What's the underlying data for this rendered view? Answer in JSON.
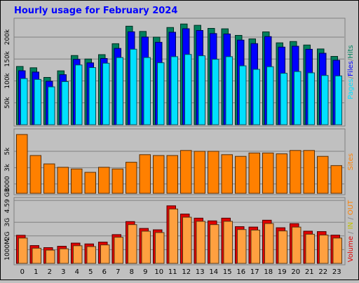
{
  "chart_data": [
    {
      "type": "bar",
      "title": "Hourly usage for February 2024",
      "categories": [
        "0",
        "1",
        "2",
        "3",
        "4",
        "5",
        "6",
        "7",
        "8",
        "9",
        "10",
        "11",
        "12",
        "13",
        "14",
        "15",
        "16",
        "17",
        "18",
        "19",
        "20",
        "21",
        "22",
        "23"
      ],
      "yticks": [
        "50k",
        "100k",
        "150k",
        "200k"
      ],
      "ylim": [
        0,
        240000
      ],
      "series": [
        {
          "name": "Hits",
          "color": "#00805c",
          "values": [
            133000,
            130000,
            108000,
            123000,
            158000,
            150000,
            160000,
            185000,
            225000,
            213000,
            200000,
            222000,
            230000,
            227000,
            220000,
            219000,
            204000,
            196000,
            212000,
            187000,
            190000,
            182000,
            173000,
            156000
          ]
        },
        {
          "name": "Files",
          "color": "#0000ff",
          "values": [
            128000,
            125000,
            104000,
            119000,
            154000,
            146000,
            156000,
            179000,
            217000,
            205000,
            193000,
            216000,
            224000,
            220000,
            213000,
            212000,
            198000,
            190000,
            206000,
            182000,
            184000,
            177000,
            168000,
            152000
          ]
        },
        {
          "name": "Pages",
          "color": "#00e0ff",
          "values": [
            115000,
            113000,
            96000,
            108000,
            146000,
            140000,
            150000,
            163000,
            182000,
            163000,
            151000,
            165000,
            170000,
            167000,
            159000,
            165000,
            144000,
            136000,
            142000,
            127000,
            131000,
            128000,
            122000,
            121000
          ]
        }
      ],
      "ylabel": [
        {
          "text": "Pages",
          "color": "#00e0ff"
        },
        {
          "text": "/",
          "color": "#808080"
        },
        {
          "text": "Files",
          "color": "#0000ff"
        },
        {
          "text": "/",
          "color": "#808080"
        },
        {
          "text": "Hits",
          "color": "#00805c"
        }
      ]
    },
    {
      "type": "bar",
      "categories": [
        "0",
        "1",
        "2",
        "3",
        "4",
        "5",
        "6",
        "7",
        "8",
        "9",
        "10",
        "11",
        "12",
        "13",
        "14",
        "15",
        "16",
        "17",
        "18",
        "19",
        "20",
        "21",
        "22",
        "23"
      ],
      "yticks": [
        "1000",
        "3k",
        "5k"
      ],
      "ylim": [
        0,
        7500
      ],
      "series": [
        {
          "name": "Sites",
          "color": "#ff8000",
          "values": [
            7000,
            4500,
            3500,
            3100,
            2900,
            2500,
            3100,
            2900,
            3700,
            4600,
            4500,
            4500,
            5100,
            5000,
            5000,
            4600,
            4400,
            4800,
            4800,
            4700,
            5100,
            5100,
            4400,
            3300
          ]
        }
      ],
      "ylabel": [
        {
          "text": "Sites",
          "color": "#ff8000"
        }
      ]
    },
    {
      "type": "bar",
      "categories": [
        "0",
        "1",
        "2",
        "3",
        "4",
        "5",
        "6",
        "7",
        "8",
        "9",
        "10",
        "11",
        "12",
        "13",
        "14",
        "15",
        "16",
        "17",
        "18",
        "19",
        "20",
        "21",
        "22",
        "23"
      ],
      "yticks": [
        "1000M",
        "2G",
        "3G",
        "4.59 GB"
      ],
      "ylim": [
        0,
        4.7
      ],
      "series": [
        {
          "name": "Volume",
          "color": "#e00000",
          "values": [
            2.05,
            1.3,
            1.15,
            1.25,
            1.48,
            1.42,
            1.55,
            2.1,
            3.05,
            2.55,
            2.45,
            4.2,
            3.6,
            3.3,
            3.1,
            3.3,
            2.68,
            2.65,
            3.15,
            2.6,
            2.9,
            2.35,
            2.32,
            2.06
          ]
        },
        {
          "name": "IN",
          "color": "#ffff00",
          "values": [
            0,
            0,
            0,
            0,
            0,
            0,
            0,
            0,
            0,
            0,
            0,
            0,
            0,
            0,
            0,
            0,
            0,
            0,
            0,
            0,
            0,
            0,
            0,
            0
          ]
        },
        {
          "name": "OUT",
          "color": "#ffa040",
          "values": [
            2.0,
            1.26,
            1.12,
            1.22,
            1.44,
            1.38,
            1.5,
            2.06,
            2.98,
            2.5,
            2.4,
            4.12,
            3.52,
            3.22,
            2.98,
            3.22,
            2.62,
            2.58,
            3.06,
            2.52,
            2.8,
            2.28,
            2.22,
            2.0
          ]
        }
      ],
      "ylabel": [
        {
          "text": "Volume",
          "color": "#e00000"
        },
        {
          "text": " / ",
          "color": "#808080"
        },
        {
          "text": "IN",
          "color": "#c0c000"
        },
        {
          "text": " / ",
          "color": "#808080"
        },
        {
          "text": "OUT",
          "color": "#ff8000"
        }
      ]
    }
  ]
}
